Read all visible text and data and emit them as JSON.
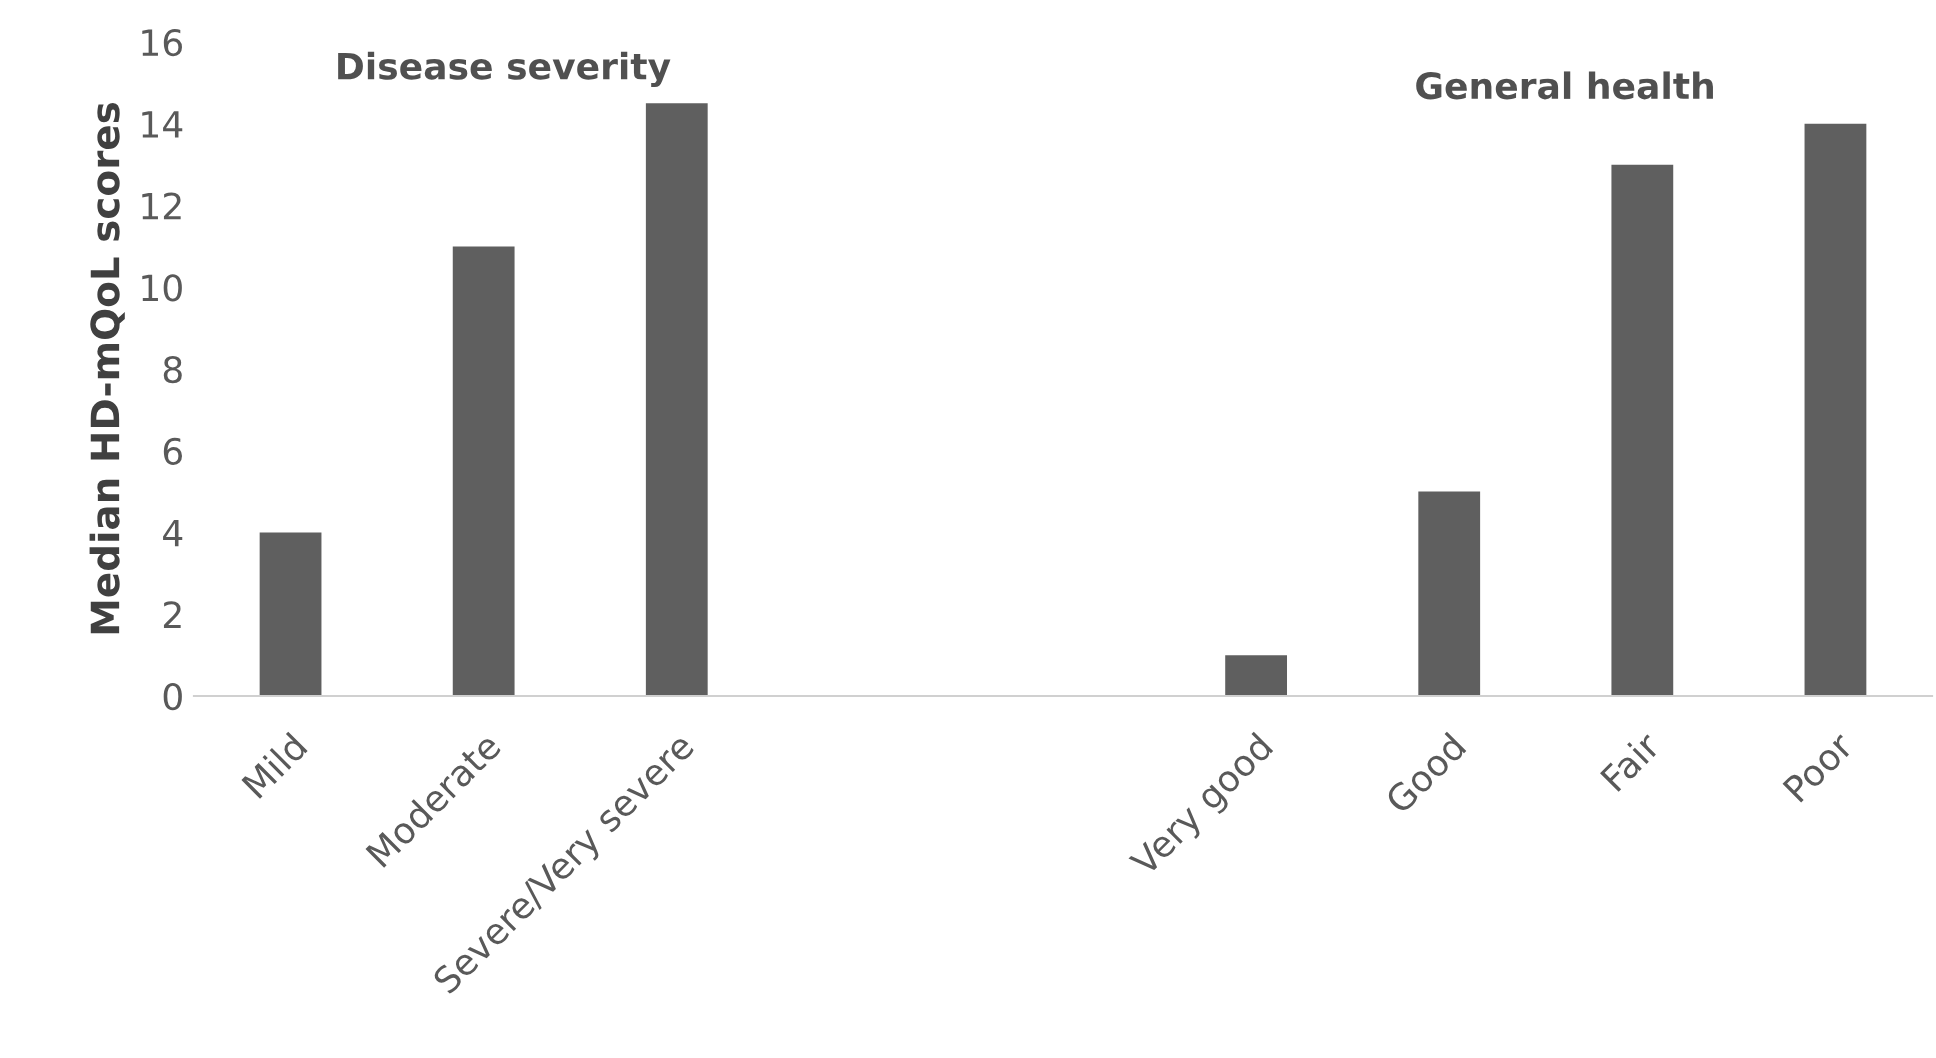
{
  "chart_data": {
    "type": "bar",
    "categories": [
      "Mild",
      "Moderate",
      "Severe/Very severe",
      null,
      null,
      "Very good",
      "Good",
      "Fair",
      "Poor"
    ],
    "values": [
      4,
      11,
      14.5,
      null,
      null,
      1,
      5,
      13,
      14
    ],
    "color": "#5f5f5f",
    "ylabel": "Median HD-mQoL scores",
    "ylim": [
      0,
      16
    ],
    "yticks": [
      0,
      2,
      4,
      6,
      8,
      10,
      12,
      14,
      16
    ],
    "annotations": [
      "Disease severity",
      "General health"
    ],
    "grid": false
  }
}
